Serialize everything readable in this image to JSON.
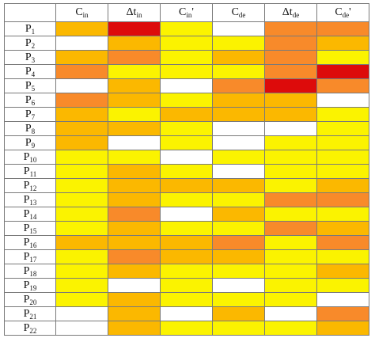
{
  "palette": {
    "w": "#ffffff",
    "y": "#fbf300",
    "o": "#fbb800",
    "d": "#f88a2a",
    "r": "#dd0b0b"
  },
  "columns": [
    {
      "base": "C",
      "sub": "in",
      "suffix": ""
    },
    {
      "base": "Δt",
      "sub": "in",
      "suffix": ""
    },
    {
      "base": "C",
      "sub": "in",
      "suffix": "'"
    },
    {
      "base": "C",
      "sub": "de",
      "suffix": ""
    },
    {
      "base": "Δt",
      "sub": "de",
      "suffix": ""
    },
    {
      "base": "C",
      "sub": "de",
      "suffix": "'"
    }
  ],
  "rows": [
    {
      "base": "P",
      "sub": "1",
      "cells": [
        "o",
        "r",
        "y",
        "w",
        "d",
        "d"
      ]
    },
    {
      "base": "P",
      "sub": "2",
      "cells": [
        "w",
        "o",
        "y",
        "y",
        "d",
        "o"
      ]
    },
    {
      "base": "P",
      "sub": "3",
      "cells": [
        "o",
        "d",
        "y",
        "o",
        "d",
        "y"
      ]
    },
    {
      "base": "P",
      "sub": "4",
      "cells": [
        "d",
        "y",
        "y",
        "y",
        "d",
        "r"
      ]
    },
    {
      "base": "P",
      "sub": "5",
      "cells": [
        "w",
        "o",
        "w",
        "d",
        "r",
        "d"
      ]
    },
    {
      "base": "P",
      "sub": "6",
      "cells": [
        "d",
        "o",
        "y",
        "o",
        "o",
        "w"
      ]
    },
    {
      "base": "P",
      "sub": "7",
      "cells": [
        "o",
        "y",
        "o",
        "o",
        "o",
        "y"
      ]
    },
    {
      "base": "P",
      "sub": "8",
      "cells": [
        "o",
        "o",
        "y",
        "w",
        "w",
        "y"
      ]
    },
    {
      "base": "P",
      "sub": "9",
      "cells": [
        "o",
        "w",
        "y",
        "w",
        "y",
        "y"
      ]
    },
    {
      "base": "P",
      "sub": "10",
      "cells": [
        "y",
        "y",
        "w",
        "y",
        "y",
        "y"
      ]
    },
    {
      "base": "P",
      "sub": "11",
      "cells": [
        "y",
        "o",
        "y",
        "w",
        "y",
        "y"
      ]
    },
    {
      "base": "P",
      "sub": "12",
      "cells": [
        "y",
        "o",
        "o",
        "o",
        "y",
        "o"
      ]
    },
    {
      "base": "P",
      "sub": "13",
      "cells": [
        "y",
        "o",
        "y",
        "y",
        "d",
        "d"
      ]
    },
    {
      "base": "P",
      "sub": "14",
      "cells": [
        "y",
        "d",
        "w",
        "o",
        "y",
        "y"
      ]
    },
    {
      "base": "P",
      "sub": "15",
      "cells": [
        "y",
        "o",
        "y",
        "y",
        "d",
        "o"
      ]
    },
    {
      "base": "P",
      "sub": "16",
      "cells": [
        "o",
        "o",
        "o",
        "d",
        "y",
        "d"
      ]
    },
    {
      "base": "P",
      "sub": "17",
      "cells": [
        "y",
        "d",
        "o",
        "o",
        "y",
        "y"
      ]
    },
    {
      "base": "P",
      "sub": "18",
      "cells": [
        "y",
        "o",
        "y",
        "y",
        "y",
        "o"
      ]
    },
    {
      "base": "P",
      "sub": "19",
      "cells": [
        "y",
        "w",
        "y",
        "w",
        "y",
        "y"
      ]
    },
    {
      "base": "P",
      "sub": "20",
      "cells": [
        "y",
        "o",
        "y",
        "y",
        "y",
        "w"
      ]
    },
    {
      "base": "P",
      "sub": "21",
      "cells": [
        "w",
        "o",
        "w",
        "o",
        "w",
        "d"
      ]
    },
    {
      "base": "P",
      "sub": "22",
      "cells": [
        "w",
        "o",
        "y",
        "y",
        "y",
        "o"
      ]
    }
  ]
}
